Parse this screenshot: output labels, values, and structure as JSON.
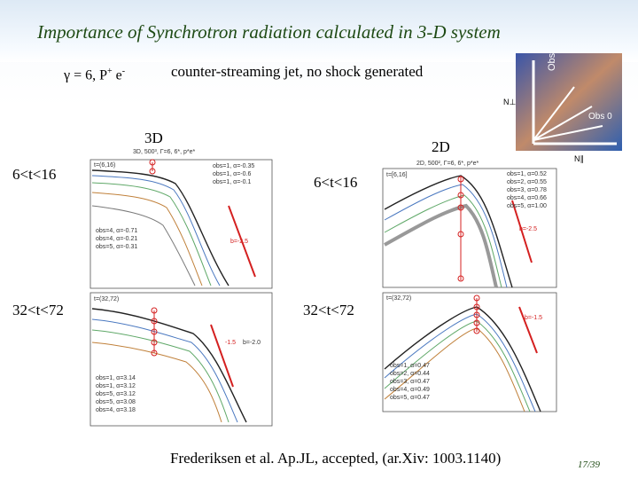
{
  "slide": {
    "title": "Importance of Synchrotron radiation calculated in 3-D system",
    "gamma_prefix": "γ = 6, P",
    "gamma_p_sup": "+",
    "gamma_mid": " e",
    "gamma_e_sup": "-",
    "subtitle": "counter-streaming jet, no shock generated",
    "label_3d": "3D",
    "label_2d": "2D",
    "left_top_range": "6<t<16",
    "left_bottom_range": "32<t<72",
    "right_top_range": "6<t<16",
    "right_bottom_range": "32<t<72",
    "citation": "Frederiksen et al. Ap.JL, accepted, (ar.Xiv: 1003.1140)",
    "page_number": "17/39"
  },
  "plots": {
    "p3d_top": {
      "header": "3D, 500³, Γ=6, 6*, p*e*",
      "time": "t=(6,16)",
      "slope": "b=-2.5",
      "legend": [
        "obs=1, α=-0.35",
        "obs=1, α=-0.6",
        "obs=1, α=-0.1",
        "obs=4, α=-0.71",
        "obs=4, α=-0.21",
        "obs=5, α=-0.31"
      ],
      "colors": {
        "accent": "#d42020"
      }
    },
    "p3d_bottom": {
      "time": "t=(32,72)",
      "slope": "-1.5",
      "slope2": "b=-2.0",
      "legend": [
        "obs=1, α=3.14",
        "obs=1, α=3.12",
        "obs=5, α=3.12",
        "obs=5, α=3.08",
        "obs=4, α=3.18"
      ]
    },
    "p2d_top": {
      "header": "2D, 500², Γ=6, 6*, p*e*",
      "time": "t=[6,16]",
      "slope": "b=-2.5",
      "legend": [
        "obs=1, α=0.52",
        "obs=2, α=0.55",
        "obs=3, α=0.78",
        "obs=4, α=0.66",
        "obs=5, α=1.00"
      ]
    },
    "p2d_bottom": {
      "time": "t=(32,72)",
      "slope": "b=-1.5",
      "legend": [
        "obs=1, α=0.47",
        "obs=2, α=0.44",
        "obs=3, α=0.47",
        "obs=4, α=0.49",
        "obs=5, α=0.47"
      ]
    },
    "inset": {
      "obs5": "Obs 5",
      "obs0": "Obs 0",
      "ylabel": "N⊥",
      "xlabel": "N∥"
    }
  }
}
